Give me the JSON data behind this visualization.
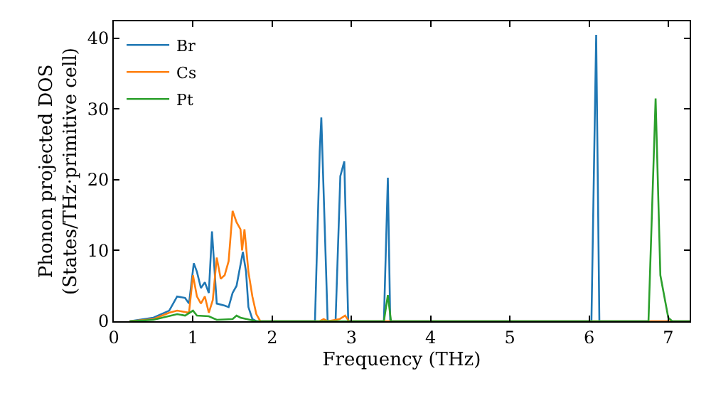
{
  "chart_data": {
    "type": "line",
    "xlabel": "Frequency (THz)",
    "ylabel": "Phonon projected DOS\n(States/THz·primitive cell)",
    "xlim": [
      0,
      7.27
    ],
    "ylim": [
      0,
      42.4
    ],
    "xticks": [
      0,
      1,
      2,
      3,
      4,
      5,
      6,
      7
    ],
    "yticks": [
      0,
      10,
      20,
      30,
      40
    ],
    "legend": "top left",
    "marker": "none",
    "line_style": "solid",
    "series": [
      {
        "name": "Br",
        "color": "#1f77b4",
        "x": [
          0.2,
          0.5,
          0.7,
          0.8,
          0.9,
          0.95,
          1.01,
          1.05,
          1.1,
          1.15,
          1.2,
          1.24,
          1.3,
          1.4,
          1.45,
          1.5,
          1.55,
          1.63,
          1.67,
          1.7,
          1.75,
          1.8,
          2.54,
          2.6,
          2.62,
          2.7,
          2.8,
          2.86,
          2.91,
          2.96,
          3.41,
          3.46,
          3.49,
          6.03,
          6.09,
          6.13,
          7.27
        ],
        "values": [
          0,
          0.5,
          1.5,
          3.5,
          3.3,
          2.5,
          8.2,
          7,
          4.7,
          5.5,
          4,
          12.7,
          2.5,
          2.2,
          2,
          4,
          5,
          9.8,
          7,
          2,
          0.3,
          0,
          0,
          24,
          28.8,
          0,
          0,
          20.5,
          22.6,
          0,
          0,
          20.3,
          0,
          0,
          40.5,
          0,
          0
        ]
      },
      {
        "name": "Cs",
        "color": "#ff7f0e",
        "x": [
          0.2,
          0.5,
          0.7,
          0.8,
          0.9,
          0.95,
          1.0,
          1.05,
          1.1,
          1.15,
          1.2,
          1.25,
          1.3,
          1.35,
          1.4,
          1.45,
          1.5,
          1.55,
          1.6,
          1.62,
          1.65,
          1.7,
          1.75,
          1.8,
          1.85,
          2.6,
          2.65,
          2.7,
          2.85,
          2.92,
          2.97,
          7.27
        ],
        "values": [
          0,
          0.3,
          1.2,
          1.5,
          1.3,
          1.2,
          6.5,
          3.5,
          2.5,
          3.5,
          1.2,
          3,
          9,
          6,
          6.5,
          8.5,
          15.6,
          14,
          13,
          10,
          13,
          7,
          3.5,
          1,
          0,
          0,
          0.3,
          0,
          0.3,
          0.8,
          0,
          0
        ]
      },
      {
        "name": "Pt",
        "color": "#2ca02c",
        "x": [
          0.2,
          0.5,
          0.8,
          0.9,
          1.0,
          1.05,
          1.2,
          1.3,
          1.5,
          1.55,
          1.6,
          1.8,
          3.41,
          3.46,
          3.5,
          6.75,
          6.84,
          6.9,
          7.0,
          7.05,
          7.27
        ],
        "values": [
          0,
          0.2,
          1.0,
          0.8,
          1.5,
          0.8,
          0.7,
          0.2,
          0.3,
          0.8,
          0.5,
          0,
          0,
          3.7,
          0,
          0,
          31.5,
          6.5,
          0.5,
          0,
          0
        ]
      }
    ]
  }
}
